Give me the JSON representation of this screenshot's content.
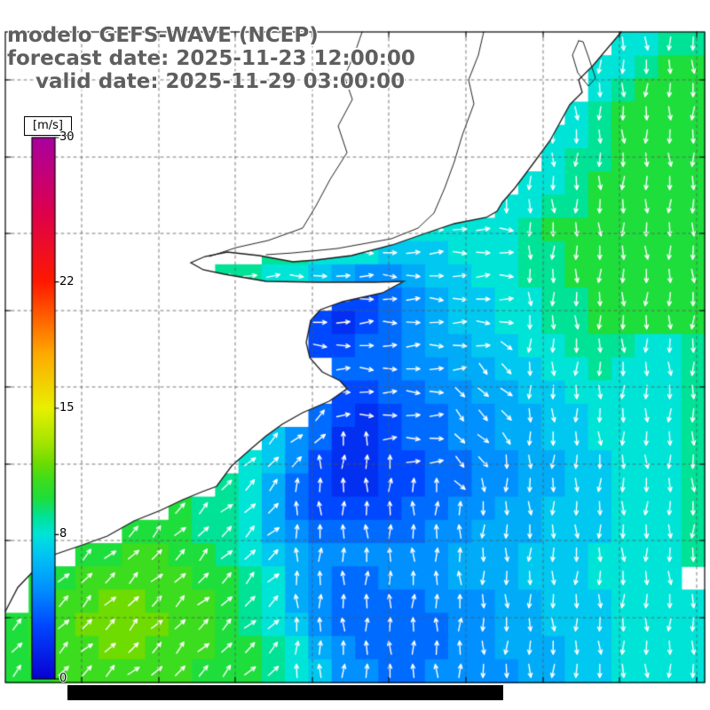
{
  "header": {
    "model_line": "modelo GEFS-WAVE (NCEP)",
    "forecast_line": "forecast date: 2025-11-23 12:00:00",
    "valid_line": "valid date: 2025-11-29 03:00:00"
  },
  "colorbar": {
    "label": "[m/s]",
    "ticks": [
      30,
      22,
      15,
      8,
      0
    ],
    "min": 0,
    "max": 30,
    "stops": [
      [
        0,
        "#0a00d2"
      ],
      [
        3,
        "#0048ff"
      ],
      [
        5,
        "#0090ff"
      ],
      [
        7,
        "#00c8f0"
      ],
      [
        8,
        "#00e4d8"
      ],
      [
        9,
        "#00e296"
      ],
      [
        10,
        "#1ede3c"
      ],
      [
        11,
        "#3cdc1e"
      ],
      [
        12,
        "#6edc00"
      ],
      [
        13,
        "#a0e400"
      ],
      [
        15,
        "#e8f000"
      ],
      [
        18,
        "#ffaa00"
      ],
      [
        22,
        "#ff1900"
      ],
      [
        26,
        "#dc0050"
      ],
      [
        30,
        "#aa00a0"
      ]
    ]
  },
  "chart_data": {
    "type": "heatmap",
    "title": "modelo GEFS-WAVE (NCEP)",
    "units": "m/s",
    "value_range": [
      0,
      30
    ],
    "grid_cols": 30,
    "grid_rows": 28,
    "encoding": {
      "land": ".",
      "speed_chars": "0-9 = 0-9 m/s, a=10, b=11, c=12 m/s",
      "direction_chars": {
        "n": "N",
        "e": "E",
        "s": "S",
        "w": "W",
        "a": "NE",
        "b": "SE",
        "c": "SW",
        "d": "NW"
      }
    },
    "speed_rows": [
      "..........................8899",
      ".........................889aa",
      ".........................89aaa",
      "........................89aaaa",
      ".......................889aaaa",
      ".......................899aaaa",
      "......................889aaaaa",
      ".....................8899aaaaa",
      ".................888889aaaaaaa",
      "...........9988877788899aaaaaa",
      ".........998876556778899aaaaaa",
      "..............33456778899aaaaa",
      ".............323456778899aaaaa",
      ".............33445667788999889",
      "..............4445566778898889",
      "..............3344556677888889",
      ".............43234455667788889",
      "...........7542234455667788889",
      "..........87532233445566778889",
      ".........986432233445566778889",
      ".......a9986433334455667778889",
      ".....aaa998654444455 6667778889",
      "...aabbaa987655555566677788 889",
      ".aabbbbbaa98654455566 67778888",
      ".abbccbbba98654444555667778888",
      "abbccccbba98754444455667778888",
      "abbbccbbbaa9865444455666778888",
      "aabbbbbbaaa9875544555566778888"
    ],
    "direction_rows": [
      "..........................ssss",
      ".........................sssss",
      ".........................sssss",
      "........................ssssss",
      ".......................sssssss",
      ".......................sssssss",
      "......................ssssssss",
      ".....................sssssssss",
      ".................eeeeessssssss",
      "...........eeeeeeeeeeessssssss",
      ".........eeeeeeeeeeeeessssssss",
      "..............eeeeeeeessssssss",
      ".............eeeeeeeeessssssss",
      ".............eeeeeeeebssssssss",
      "..............eeeeeebbssssssss",
      "..............eeeeebbbssssssss",
      ".............aeeeeebbbssssssss",
      "...........aaanneeebbbssssssss",
      "..........aaannnneebbsssssssss",
      ".........aaannnnnnnbssssssssss",
      ".......aaaaannnnnnnnssssssssss",
      ".....aaaaaaannnnnnnnssssssssss",
      "...aaaaaaaaannnnnnnnssssssssss",
      ".aaaaaaaaaaannnnnnnnssssssssss",
      ".aaaaaaaaaaannnnnnnnssssssssss",
      "aaaaaaaaaaaannnnnnnnssssssssss",
      "aaaaaaaaaaaannnnnnnnssssssssss",
      "aaaaaaaaaaaannnnnnnnssssssssss"
    ]
  },
  "map_geometry": {
    "coastline": [
      [
        700,
        36
      ],
      [
        668,
        74
      ],
      [
        652,
        90
      ],
      [
        656,
        104
      ],
      [
        642,
        118
      ],
      [
        620,
        158
      ],
      [
        601,
        184
      ],
      [
        580,
        212
      ],
      [
        566,
        228
      ],
      [
        560,
        238
      ],
      [
        548,
        245
      ],
      [
        512,
        252
      ],
      [
        482,
        262
      ],
      [
        442,
        276
      ],
      [
        396,
        288
      ],
      [
        356,
        293
      ],
      [
        330,
        295
      ],
      [
        292,
        288
      ],
      [
        256,
        284
      ],
      [
        231,
        289
      ],
      [
        215,
        296
      ],
      [
        229,
        304
      ],
      [
        253,
        309
      ],
      [
        300,
        317
      ],
      [
        360,
        318
      ],
      [
        421,
        318
      ],
      [
        455,
        317
      ],
      [
        431,
        330
      ],
      [
        386,
        340
      ],
      [
        361,
        349
      ],
      [
        350,
        361
      ],
      [
        345,
        386
      ],
      [
        349,
        403
      ],
      [
        363,
        419
      ],
      [
        383,
        429
      ],
      [
        391,
        438
      ],
      [
        371,
        452
      ],
      [
        341,
        465
      ],
      [
        318,
        478
      ],
      [
        300,
        491
      ],
      [
        279,
        509
      ],
      [
        261,
        525
      ],
      [
        244,
        548
      ],
      [
        228,
        554
      ],
      [
        206,
        563
      ],
      [
        181,
        575
      ],
      [
        151,
        587
      ],
      [
        121,
        604
      ],
      [
        96,
        613
      ],
      [
        61,
        625
      ],
      [
        40,
        641
      ],
      [
        20,
        662
      ],
      [
        6,
        689
      ]
    ],
    "rivers": [
      [
        [
          408,
          36
        ],
        [
          399,
          62
        ],
        [
          388,
          86
        ],
        [
          397,
          112
        ],
        [
          381,
          142
        ],
        [
          391,
          172
        ],
        [
          372,
          202
        ],
        [
          356,
          232
        ],
        [
          341,
          257
        ],
        [
          302,
          271
        ],
        [
          266,
          279
        ],
        [
          236,
          289
        ]
      ],
      [
        [
          545,
          36
        ],
        [
          539,
          62
        ],
        [
          528,
          90
        ],
        [
          534,
          117
        ],
        [
          521,
          152
        ],
        [
          512,
          182
        ],
        [
          501,
          212
        ],
        [
          489,
          240
        ],
        [
          471,
          257
        ],
        [
          441,
          269
        ],
        [
          380,
          280
        ],
        [
          330,
          285
        ],
        [
          300,
          287
        ]
      ]
    ],
    "lagoon": [
      [
        652,
        46
      ],
      [
        645,
        62
      ],
      [
        651,
        82
      ],
      [
        663,
        97
      ],
      [
        671,
        88
      ],
      [
        663,
        64
      ],
      [
        657,
        47
      ],
      [
        652,
        46
      ]
    ]
  }
}
